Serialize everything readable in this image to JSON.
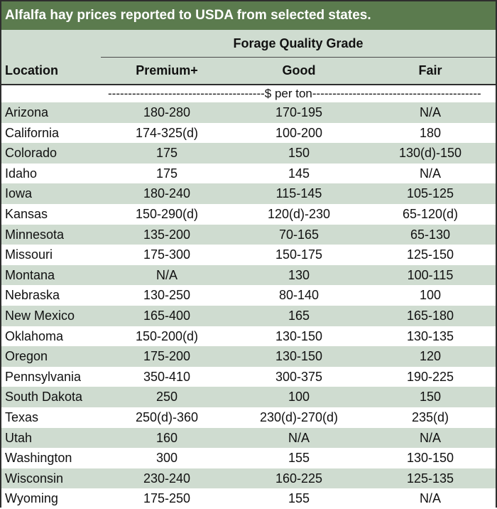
{
  "title": "Alfalfa hay prices reported to USDA from selected states.",
  "group_header": "Forage Quality Grade",
  "columns": {
    "location": "Location",
    "premium": "Premium+",
    "good": "Good",
    "fair": "Fair"
  },
  "units": "---------------------------------------$ per ton------------------------------------------",
  "rows": [
    {
      "location": "Arizona",
      "premium": "180-280",
      "good": "170-195",
      "fair": "N/A"
    },
    {
      "location": "California",
      "premium": "174-325(d)",
      "good": "100-200",
      "fair": "180"
    },
    {
      "location": "Colorado",
      "premium": "175",
      "good": "150",
      "fair": "130(d)-150"
    },
    {
      "location": "Idaho",
      "premium": "175",
      "good": "145",
      "fair": "N/A"
    },
    {
      "location": "Iowa",
      "premium": "180-240",
      "good": "115-145",
      "fair": "105-125"
    },
    {
      "location": "Kansas",
      "premium": "150-290(d)",
      "good": "120(d)-230",
      "fair": "65-120(d)"
    },
    {
      "location": "Minnesota",
      "premium": "135-200",
      "good": "70-165",
      "fair": "65-130"
    },
    {
      "location": "Missouri",
      "premium": "175-300",
      "good": "150-175",
      "fair": "125-150"
    },
    {
      "location": "Montana",
      "premium": "N/A",
      "good": "130",
      "fair": "100-115"
    },
    {
      "location": "Nebraska",
      "premium": "130-250",
      "good": "80-140",
      "fair": "100"
    },
    {
      "location": "New Mexico",
      "premium": "165-400",
      "good": "165",
      "fair": "165-180"
    },
    {
      "location": "Oklahoma",
      "premium": "150-200(d)",
      "good": "130-150",
      "fair": "130-135"
    },
    {
      "location": "Oregon",
      "premium": "175-200",
      "good": "130-150",
      "fair": "120"
    },
    {
      "location": "Pennsylvania",
      "premium": "350-410",
      "good": "300-375",
      "fair": "190-225"
    },
    {
      "location": "South Dakota",
      "premium": "250",
      "good": "100",
      "fair": "150"
    },
    {
      "location": "Texas",
      "premium": "250(d)-360",
      "good": "230(d)-270(d)",
      "fair": "235(d)"
    },
    {
      "location": "Utah",
      "premium": "160",
      "good": "N/A",
      "fair": "N/A"
    },
    {
      "location": "Washington",
      "premium": "300",
      "good": "155",
      "fair": "130-150"
    },
    {
      "location": "Wisconsin",
      "premium": "230-240",
      "good": "160-225",
      "fair": "125-135"
    },
    {
      "location": "Wyoming",
      "premium": "175-250",
      "good": "155",
      "fair": "N/A"
    }
  ]
}
